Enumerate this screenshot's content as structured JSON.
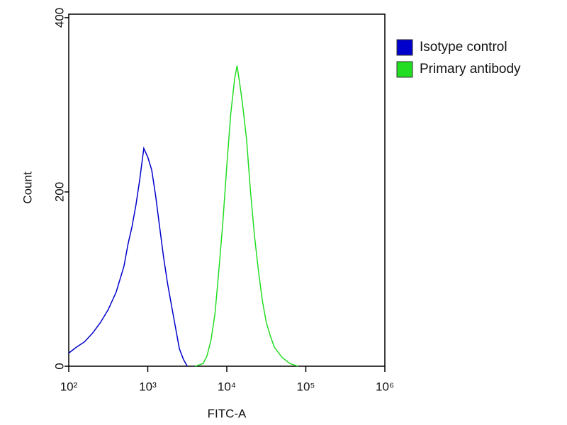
{
  "chart_data": {
    "type": "line",
    "x_label": "FITC-A",
    "y_label": "Count",
    "xscale": "log",
    "xlim": [
      100,
      1000000
    ],
    "xticks": [
      {
        "value": 100,
        "label": "10²"
      },
      {
        "value": 1000,
        "label": "10³"
      },
      {
        "value": 10000,
        "label": "10⁴"
      },
      {
        "value": 100000,
        "label": "10⁵"
      },
      {
        "value": 1000000,
        "label": "10⁶"
      }
    ],
    "ylim": [
      0,
      404
    ],
    "yticks": [
      0,
      200,
      400
    ],
    "legend": "outside-right",
    "series": [
      {
        "name": "Isotype control",
        "color": "#0000cc",
        "x": [
          100,
          126,
          158,
          200,
          251,
          316,
          398,
          501,
          562,
          631,
          708,
          794,
          891,
          1000,
          1122,
          1259,
          1413,
          1585,
          1778,
          1995,
          2239,
          2512,
          2818,
          3162
        ],
        "values": [
          15,
          22,
          28,
          38,
          50,
          65,
          85,
          115,
          140,
          160,
          185,
          215,
          250,
          240,
          225,
          195,
          160,
          125,
          95,
          70,
          45,
          20,
          8,
          0
        ]
      },
      {
        "name": "Primary antibody",
        "color": "#22dd22",
        "x": [
          3981,
          5012,
          5623,
          6310,
          7079,
          7943,
          8913,
          10000,
          11220,
          12589,
          13490,
          14791,
          15849,
          17783,
          19953,
          22387,
          25119,
          28184,
          31623,
          35481,
          39811,
          50119,
          63096,
          79433
        ],
        "values": [
          0,
          3,
          12,
          30,
          60,
          110,
          165,
          230,
          290,
          330,
          345,
          320,
          300,
          260,
          200,
          150,
          110,
          75,
          50,
          35,
          22,
          10,
          3,
          0
        ]
      }
    ]
  }
}
